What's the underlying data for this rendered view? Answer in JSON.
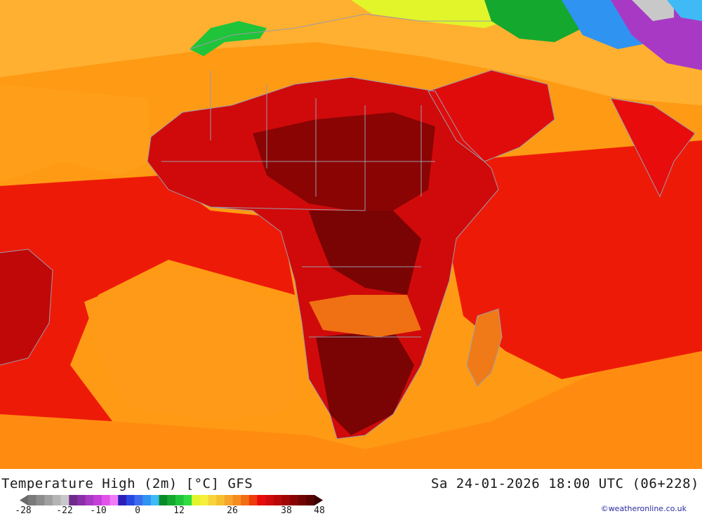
{
  "title": "Temperature High (2m) [°C] GFS",
  "datetime": "Sa 24-01-2026 18:00 UTC (06+228)",
  "credit": "©weatheronline.co.uk",
  "legend": {
    "ticks": [
      "-28",
      "-22",
      "-10",
      "0",
      "12",
      "26",
      "38",
      "48"
    ],
    "colors": [
      "#7a7a7a",
      "#8c8c8c",
      "#a0a0a0",
      "#b4b4b4",
      "#c8c8c8",
      "#6f2a8c",
      "#8a2fa8",
      "#a839c4",
      "#c43fd8",
      "#e052ea",
      "#f07cf5",
      "#2a1fb8",
      "#2a46e0",
      "#3a6cf0",
      "#2f93f2",
      "#3fbaf5",
      "#0a8c28",
      "#14a82e",
      "#1fc43a",
      "#2fdc42",
      "#e2f52a",
      "#f5f03a",
      "#f7d43a",
      "#f5bf30",
      "#f5a52a",
      "#f58c1f",
      "#f26e14",
      "#ef3a0a",
      "#e80c0c",
      "#d00a0a",
      "#b80808",
      "#a00606",
      "#880404",
      "#700303",
      "#580202"
    ]
  }
}
